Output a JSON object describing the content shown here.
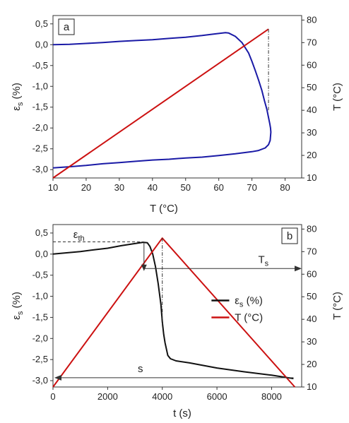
{
  "chart_data": [
    {
      "type": "line",
      "panel_label": "a",
      "xlabel": "T (°C)",
      "ylabel_left_main": "ε",
      "ylabel_left_sub": "s",
      "ylabel_left_unit": " (%)",
      "ylabel_right": "T  (°C)",
      "xlim": [
        10,
        85
      ],
      "ylim_left": [
        -3.2,
        0.7
      ],
      "ylim_right": [
        10,
        82
      ],
      "xticks": [
        10,
        20,
        30,
        40,
        50,
        60,
        70,
        80
      ],
      "yticks_left": [
        0.5,
        0.0,
        -0.5,
        -1.0,
        -1.5,
        -2.0,
        -2.5,
        -3.0
      ],
      "ytick_labels_left": [
        "0,5",
        "0,0",
        "-0,5",
        "-1,0",
        "-1,5",
        "-2,0",
        "-2,5",
        "-3,0"
      ],
      "yticks_right": [
        10,
        20,
        30,
        40,
        50,
        60,
        70,
        80
      ],
      "series": [
        {
          "axis": "left",
          "color": "#1a1aa6",
          "x": [
            10,
            15,
            20,
            25,
            30,
            35,
            40,
            45,
            50,
            55,
            58,
            60,
            62,
            63,
            65,
            67,
            69,
            70,
            71,
            72,
            73,
            73.8,
            74.5,
            75,
            75.4,
            75.6,
            75.7,
            75.5,
            75,
            74,
            72,
            70,
            65,
            60,
            55,
            50,
            45,
            40,
            35,
            30,
            25,
            20,
            15,
            10
          ],
          "y": [
            0.0,
            0.01,
            0.03,
            0.05,
            0.08,
            0.1,
            0.12,
            0.15,
            0.18,
            0.22,
            0.25,
            0.27,
            0.29,
            0.28,
            0.2,
            0.05,
            -0.2,
            -0.4,
            -0.62,
            -0.85,
            -1.1,
            -1.35,
            -1.55,
            -1.75,
            -1.9,
            -2.0,
            -2.1,
            -2.3,
            -2.4,
            -2.48,
            -2.54,
            -2.57,
            -2.62,
            -2.66,
            -2.7,
            -2.72,
            -2.75,
            -2.77,
            -2.8,
            -2.83,
            -2.86,
            -2.9,
            -2.93,
            -2.96
          ]
        },
        {
          "axis": "right",
          "color": "#cc1111",
          "x": [
            10,
            75
          ],
          "y": [
            10,
            76
          ]
        }
      ],
      "vline_x": 75
    },
    {
      "type": "line",
      "panel_label": "b",
      "xlabel": "t (s)",
      "ylabel_left_main": "ε",
      "ylabel_left_sub": "s",
      "ylabel_left_unit": " (%)",
      "ylabel_right": "T  (°C)",
      "xlim": [
        0,
        9100
      ],
      "ylim_left": [
        -3.15,
        0.7
      ],
      "ylim_right": [
        10,
        82
      ],
      "xticks": [
        0,
        2000,
        4000,
        6000,
        8000
      ],
      "yticks_left": [
        0.5,
        0.0,
        -0.5,
        -1.0,
        -1.5,
        -2.0,
        -2.5,
        -3.0
      ],
      "ytick_labels_left": [
        "0,5",
        "0,0",
        "-0,5",
        "-1,0",
        "-1,5",
        "-2,0",
        "-2,5",
        "-3,0"
      ],
      "yticks_right": [
        10,
        20,
        30,
        40,
        50,
        60,
        70,
        80
      ],
      "legend": [
        {
          "label_main": "ε",
          "label_sub": "s",
          "label_unit": " (%)",
          "color": "#111111"
        },
        {
          "label_main": "T  (°C)",
          "label_sub": "",
          "label_unit": "",
          "color": "#cc1111"
        }
      ],
      "series": [
        {
          "axis": "left",
          "color": "#111111",
          "x": [
            0,
            500,
            1000,
            1500,
            2000,
            2500,
            3000,
            3300,
            3450,
            3550,
            3650,
            3750,
            3850,
            3950,
            4000,
            4050,
            4100,
            4200,
            4300,
            4500,
            5000,
            6000,
            7000,
            8000,
            8800
          ],
          "y": [
            0.0,
            0.03,
            0.06,
            0.1,
            0.14,
            0.2,
            0.25,
            0.28,
            0.27,
            0.18,
            0.0,
            -0.3,
            -0.7,
            -1.2,
            -1.6,
            -1.9,
            -2.1,
            -2.4,
            -2.48,
            -2.53,
            -2.58,
            -2.7,
            -2.79,
            -2.87,
            -2.95
          ]
        },
        {
          "axis": "right",
          "color": "#cc1111",
          "x": [
            0,
            4000,
            8850
          ],
          "y": [
            10,
            76,
            10
          ]
        }
      ],
      "annotations": {
        "eth_label_main": "ε",
        "eth_label_sub": "th",
        "ts_label_main": "T",
        "ts_label_sub": "s",
        "s_label": "s"
      }
    }
  ]
}
